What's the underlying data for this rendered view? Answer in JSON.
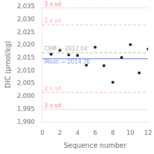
{
  "chart_data": {
    "type": "scatter",
    "xlabel": "Sequence number",
    "ylabel": "DIC (μmol/kg)",
    "x": [
      1,
      2,
      3,
      4,
      5,
      6,
      7,
      8,
      9,
      10,
      11,
      12
    ],
    "values": [
      2016.5,
      2018.0,
      2016.2,
      2016.0,
      2012.2,
      2019.2,
      2012.0,
      2005.5,
      2015.2,
      2020.2,
      2009.2,
      2018.5
    ],
    "color": "black",
    "marker": "square",
    "xlim": [
      0,
      12
    ],
    "ylim": [
      1990,
      2035
    ],
    "xticks": [
      0,
      2,
      4,
      6,
      8,
      10,
      12
    ],
    "yticks": [
      1990,
      1995,
      2000,
      2005,
      2010,
      2015,
      2020,
      2025,
      2030,
      2035
    ],
    "grid": false,
    "annotations": [
      {
        "y": 2034.56,
        "label": "3 x sd",
        "color": "#ff7777",
        "line_style": "dotted"
      },
      {
        "y": 1994.96,
        "label": "3 x sd",
        "color": "#ff7777",
        "line_style": "dotted"
      },
      {
        "y": 2027.96,
        "label": "2 x sd",
        "color": "#ffaaaa",
        "line_style": "dashed"
      },
      {
        "y": 2001.56,
        "label": "2 x sd",
        "color": "#ffaaaa",
        "line_style": "dashed"
      },
      {
        "y": 2017.04,
        "label": "CRM = 2017.04",
        "color": "#aaaaaa",
        "line_style": "dashed"
      },
      {
        "y": 2014.76,
        "label": "Mean = 2014.76",
        "color": "#7799ee",
        "line_style": "solid"
      }
    ]
  }
}
